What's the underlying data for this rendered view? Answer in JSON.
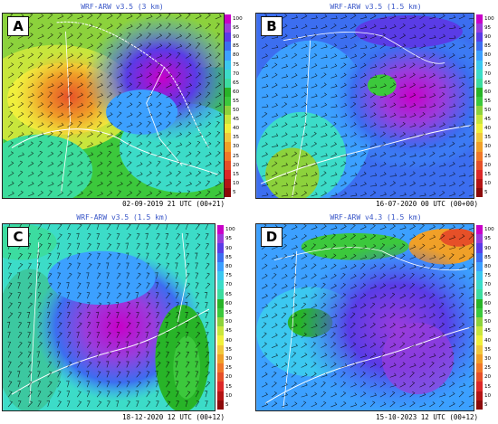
{
  "panels": [
    {
      "letter": "A",
      "title": "WRF-ARW v3.5 (3 km)",
      "timestamp": "02-09-2019 21 UTC (00+21)"
    },
    {
      "letter": "B",
      "title": "WRF-ARW v3.5 (1.5 km)",
      "timestamp": "16-07-2020 00 UTC (00+00)"
    },
    {
      "letter": "C",
      "title": "WRF-ARW v3.5 (1.5 km)",
      "timestamp": "18-12-2020 12 UTC (00+12)"
    },
    {
      "letter": "D",
      "title": "WRF-ARW v4.3 (1.5 km)",
      "timestamp": "15-10-2023 12 UTC (00+12)"
    }
  ],
  "colorbar": {
    "ticks": [
      "100",
      "95",
      "90",
      "85",
      "80",
      "75",
      "70",
      "65",
      "60",
      "55",
      "50",
      "45",
      "40",
      "35",
      "30",
      "25",
      "20",
      "15",
      "10",
      "5"
    ],
    "colors": [
      "#c800c8",
      "#9a3cdc",
      "#5a3ce6",
      "#3c6ef0",
      "#3ca0ff",
      "#3cc8f0",
      "#3cdcc8",
      "#3cdca0",
      "#28b428",
      "#3cc83c",
      "#8cd23c",
      "#c8e63c",
      "#f0f03c",
      "#f0c83c",
      "#f0a028",
      "#f07828",
      "#e65028",
      "#dc2828",
      "#b41414",
      "#8c0a0a"
    ]
  }
}
